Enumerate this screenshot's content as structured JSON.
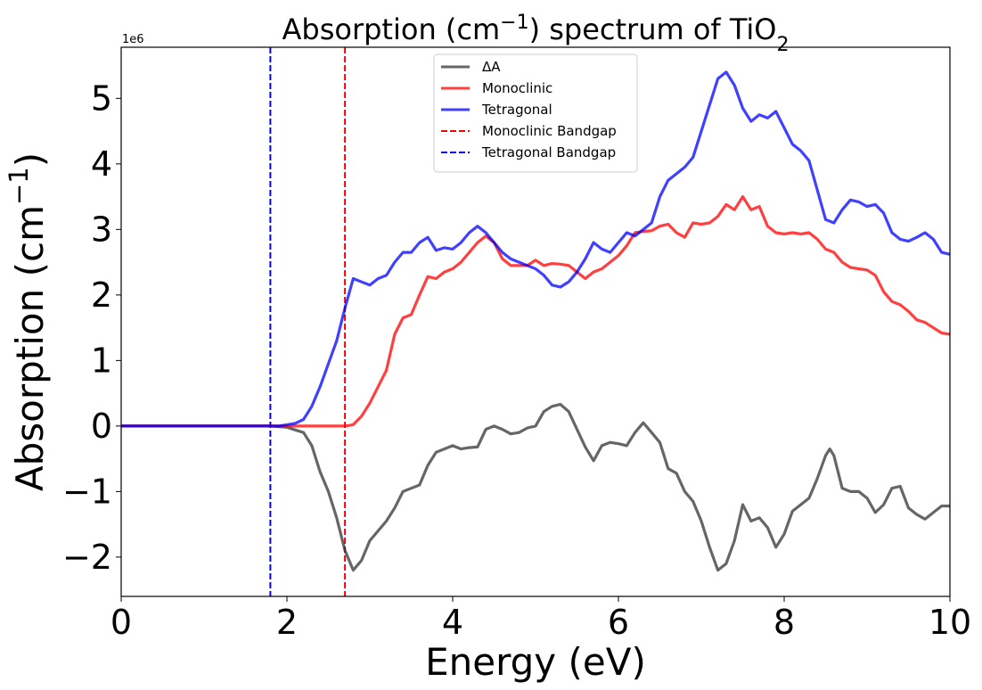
{
  "chart_data": {
    "type": "line",
    "title": "Absorption (cm⁻¹) spectrum of TiO₂",
    "xlabel": "Energy (eV)",
    "ylabel": "Absorption (cm⁻¹)",
    "y_offset_label": "1e6",
    "xlim": [
      0,
      10
    ],
    "ylim": [
      -2.6,
      5.78
    ],
    "x_ticks": [
      0,
      2,
      4,
      6,
      8,
      10
    ],
    "x_tick_labels": [
      "0",
      "2",
      "4",
      "6",
      "8",
      "10"
    ],
    "y_ticks": [
      -2,
      -1,
      0,
      1,
      2,
      3,
      4,
      5
    ],
    "y_tick_labels": [
      "−2",
      "−1",
      "0",
      "1",
      "2",
      "3",
      "4",
      "5"
    ],
    "grid": false,
    "legend_position": "top-center",
    "series": [
      {
        "name": "ΔA",
        "color": "#333333",
        "style": "solid",
        "points": [
          [
            0,
            0
          ],
          [
            1.8,
            0
          ],
          [
            2.0,
            -0.02
          ],
          [
            2.2,
            -0.1
          ],
          [
            2.3,
            -0.3
          ],
          [
            2.4,
            -0.7
          ],
          [
            2.5,
            -1.0
          ],
          [
            2.6,
            -1.4
          ],
          [
            2.7,
            -1.9
          ],
          [
            2.8,
            -2.2
          ],
          [
            2.9,
            -2.05
          ],
          [
            3.0,
            -1.75
          ],
          [
            3.1,
            -1.6
          ],
          [
            3.2,
            -1.45
          ],
          [
            3.3,
            -1.25
          ],
          [
            3.4,
            -1.0
          ],
          [
            3.5,
            -0.95
          ],
          [
            3.6,
            -0.9
          ],
          [
            3.7,
            -0.6
          ],
          [
            3.8,
            -0.4
          ],
          [
            3.9,
            -0.35
          ],
          [
            4.0,
            -0.3
          ],
          [
            4.1,
            -0.35
          ],
          [
            4.2,
            -0.33
          ],
          [
            4.3,
            -0.32
          ],
          [
            4.4,
            -0.05
          ],
          [
            4.5,
            0.0
          ],
          [
            4.6,
            -0.05
          ],
          [
            4.7,
            -0.12
          ],
          [
            4.8,
            -0.1
          ],
          [
            4.9,
            -0.03
          ],
          [
            5.0,
            0.0
          ],
          [
            5.1,
            0.22
          ],
          [
            5.2,
            0.3
          ],
          [
            5.3,
            0.33
          ],
          [
            5.4,
            0.22
          ],
          [
            5.5,
            -0.05
          ],
          [
            5.6,
            -0.32
          ],
          [
            5.7,
            -0.53
          ],
          [
            5.8,
            -0.3
          ],
          [
            5.9,
            -0.25
          ],
          [
            6.0,
            -0.27
          ],
          [
            6.1,
            -0.3
          ],
          [
            6.2,
            -0.1
          ],
          [
            6.3,
            0.05
          ],
          [
            6.4,
            -0.1
          ],
          [
            6.5,
            -0.25
          ],
          [
            6.6,
            -0.65
          ],
          [
            6.7,
            -0.72
          ],
          [
            6.8,
            -1.0
          ],
          [
            6.9,
            -1.15
          ],
          [
            7.0,
            -1.45
          ],
          [
            7.1,
            -1.85
          ],
          [
            7.2,
            -2.2
          ],
          [
            7.3,
            -2.1
          ],
          [
            7.4,
            -1.75
          ],
          [
            7.5,
            -1.2
          ],
          [
            7.6,
            -1.45
          ],
          [
            7.7,
            -1.4
          ],
          [
            7.8,
            -1.55
          ],
          [
            7.9,
            -1.85
          ],
          [
            8.0,
            -1.65
          ],
          [
            8.1,
            -1.3
          ],
          [
            8.2,
            -1.2
          ],
          [
            8.3,
            -1.1
          ],
          [
            8.4,
            -0.8
          ],
          [
            8.5,
            -0.45
          ],
          [
            8.55,
            -0.35
          ],
          [
            8.6,
            -0.45
          ],
          [
            8.7,
            -0.95
          ],
          [
            8.8,
            -1.0
          ],
          [
            8.9,
            -1.0
          ],
          [
            9.0,
            -1.1
          ],
          [
            9.1,
            -1.32
          ],
          [
            9.2,
            -1.2
          ],
          [
            9.3,
            -0.95
          ],
          [
            9.4,
            -0.92
          ],
          [
            9.5,
            -1.25
          ],
          [
            9.6,
            -1.35
          ],
          [
            9.7,
            -1.42
          ],
          [
            9.8,
            -1.32
          ],
          [
            9.9,
            -1.22
          ],
          [
            10.0,
            -1.22
          ]
        ]
      },
      {
        "name": "Monoclinic",
        "color": "#ff0000",
        "style": "solid",
        "points": [
          [
            0,
            0
          ],
          [
            2.7,
            0
          ],
          [
            2.8,
            0.02
          ],
          [
            2.9,
            0.15
          ],
          [
            3.0,
            0.35
          ],
          [
            3.1,
            0.6
          ],
          [
            3.2,
            0.85
          ],
          [
            3.3,
            1.4
          ],
          [
            3.4,
            1.65
          ],
          [
            3.5,
            1.7
          ],
          [
            3.6,
            2.0
          ],
          [
            3.7,
            2.28
          ],
          [
            3.8,
            2.25
          ],
          [
            3.9,
            2.35
          ],
          [
            4.0,
            2.4
          ],
          [
            4.1,
            2.5
          ],
          [
            4.2,
            2.65
          ],
          [
            4.3,
            2.8
          ],
          [
            4.4,
            2.9
          ],
          [
            4.5,
            2.8
          ],
          [
            4.6,
            2.55
          ],
          [
            4.7,
            2.45
          ],
          [
            4.8,
            2.45
          ],
          [
            4.9,
            2.45
          ],
          [
            5.0,
            2.53
          ],
          [
            5.1,
            2.45
          ],
          [
            5.2,
            2.48
          ],
          [
            5.3,
            2.47
          ],
          [
            5.4,
            2.45
          ],
          [
            5.5,
            2.35
          ],
          [
            5.6,
            2.25
          ],
          [
            5.7,
            2.35
          ],
          [
            5.8,
            2.4
          ],
          [
            5.9,
            2.5
          ],
          [
            6.0,
            2.6
          ],
          [
            6.1,
            2.75
          ],
          [
            6.2,
            2.95
          ],
          [
            6.3,
            2.97
          ],
          [
            6.4,
            2.98
          ],
          [
            6.5,
            3.05
          ],
          [
            6.6,
            3.08
          ],
          [
            6.7,
            2.95
          ],
          [
            6.8,
            2.88
          ],
          [
            6.9,
            3.1
          ],
          [
            7.0,
            3.08
          ],
          [
            7.1,
            3.1
          ],
          [
            7.2,
            3.2
          ],
          [
            7.3,
            3.38
          ],
          [
            7.4,
            3.3
          ],
          [
            7.5,
            3.5
          ],
          [
            7.6,
            3.3
          ],
          [
            7.7,
            3.35
          ],
          [
            7.8,
            3.05
          ],
          [
            7.9,
            2.95
          ],
          [
            8.0,
            2.93
          ],
          [
            8.1,
            2.95
          ],
          [
            8.2,
            2.93
          ],
          [
            8.3,
            2.95
          ],
          [
            8.4,
            2.85
          ],
          [
            8.5,
            2.7
          ],
          [
            8.6,
            2.65
          ],
          [
            8.7,
            2.5
          ],
          [
            8.8,
            2.42
          ],
          [
            8.9,
            2.4
          ],
          [
            9.0,
            2.38
          ],
          [
            9.1,
            2.3
          ],
          [
            9.2,
            2.05
          ],
          [
            9.3,
            1.9
          ],
          [
            9.4,
            1.85
          ],
          [
            9.5,
            1.75
          ],
          [
            9.6,
            1.62
          ],
          [
            9.7,
            1.58
          ],
          [
            9.8,
            1.5
          ],
          [
            9.9,
            1.42
          ],
          [
            10.0,
            1.4
          ]
        ]
      },
      {
        "name": "Tetragonal",
        "color": "#0000ff",
        "style": "solid",
        "points": [
          [
            0,
            0
          ],
          [
            1.9,
            0
          ],
          [
            2.0,
            0.02
          ],
          [
            2.1,
            0.04
          ],
          [
            2.2,
            0.1
          ],
          [
            2.3,
            0.3
          ],
          [
            2.4,
            0.6
          ],
          [
            2.5,
            0.95
          ],
          [
            2.6,
            1.3
          ],
          [
            2.7,
            1.8
          ],
          [
            2.8,
            2.25
          ],
          [
            2.9,
            2.2
          ],
          [
            3.0,
            2.15
          ],
          [
            3.1,
            2.25
          ],
          [
            3.2,
            2.3
          ],
          [
            3.3,
            2.5
          ],
          [
            3.4,
            2.65
          ],
          [
            3.5,
            2.65
          ],
          [
            3.6,
            2.8
          ],
          [
            3.7,
            2.88
          ],
          [
            3.8,
            2.68
          ],
          [
            3.9,
            2.72
          ],
          [
            4.0,
            2.7
          ],
          [
            4.1,
            2.8
          ],
          [
            4.2,
            2.95
          ],
          [
            4.3,
            3.05
          ],
          [
            4.4,
            2.95
          ],
          [
            4.5,
            2.8
          ],
          [
            4.6,
            2.65
          ],
          [
            4.7,
            2.55
          ],
          [
            4.8,
            2.5
          ],
          [
            4.9,
            2.45
          ],
          [
            5.0,
            2.4
          ],
          [
            5.1,
            2.3
          ],
          [
            5.2,
            2.15
          ],
          [
            5.3,
            2.12
          ],
          [
            5.4,
            2.2
          ],
          [
            5.5,
            2.35
          ],
          [
            5.6,
            2.55
          ],
          [
            5.7,
            2.8
          ],
          [
            5.8,
            2.7
          ],
          [
            5.9,
            2.65
          ],
          [
            6.0,
            2.8
          ],
          [
            6.1,
            2.95
          ],
          [
            6.2,
            2.9
          ],
          [
            6.3,
            3.0
          ],
          [
            6.4,
            3.1
          ],
          [
            6.5,
            3.5
          ],
          [
            6.6,
            3.75
          ],
          [
            6.7,
            3.85
          ],
          [
            6.8,
            3.95
          ],
          [
            6.9,
            4.1
          ],
          [
            7.0,
            4.5
          ],
          [
            7.1,
            4.9
          ],
          [
            7.2,
            5.3
          ],
          [
            7.3,
            5.4
          ],
          [
            7.4,
            5.2
          ],
          [
            7.5,
            4.85
          ],
          [
            7.6,
            4.65
          ],
          [
            7.7,
            4.75
          ],
          [
            7.8,
            4.7
          ],
          [
            7.9,
            4.8
          ],
          [
            8.0,
            4.55
          ],
          [
            8.1,
            4.3
          ],
          [
            8.2,
            4.2
          ],
          [
            8.3,
            4.05
          ],
          [
            8.4,
            3.6
          ],
          [
            8.5,
            3.15
          ],
          [
            8.6,
            3.1
          ],
          [
            8.7,
            3.3
          ],
          [
            8.8,
            3.45
          ],
          [
            8.9,
            3.42
          ],
          [
            9.0,
            3.35
          ],
          [
            9.1,
            3.38
          ],
          [
            9.2,
            3.25
          ],
          [
            9.3,
            2.95
          ],
          [
            9.4,
            2.85
          ],
          [
            9.5,
            2.82
          ],
          [
            9.6,
            2.88
          ],
          [
            9.7,
            2.95
          ],
          [
            9.8,
            2.85
          ],
          [
            9.9,
            2.65
          ],
          [
            10.0,
            2.62
          ]
        ]
      },
      {
        "name": "Monoclinic Bandgap",
        "color": "#ff0000",
        "style": "dashed",
        "vline_x": 2.7
      },
      {
        "name": "Tetragonal Bandgap",
        "color": "#0000ff",
        "style": "dashed",
        "vline_x": 1.8
      }
    ]
  }
}
